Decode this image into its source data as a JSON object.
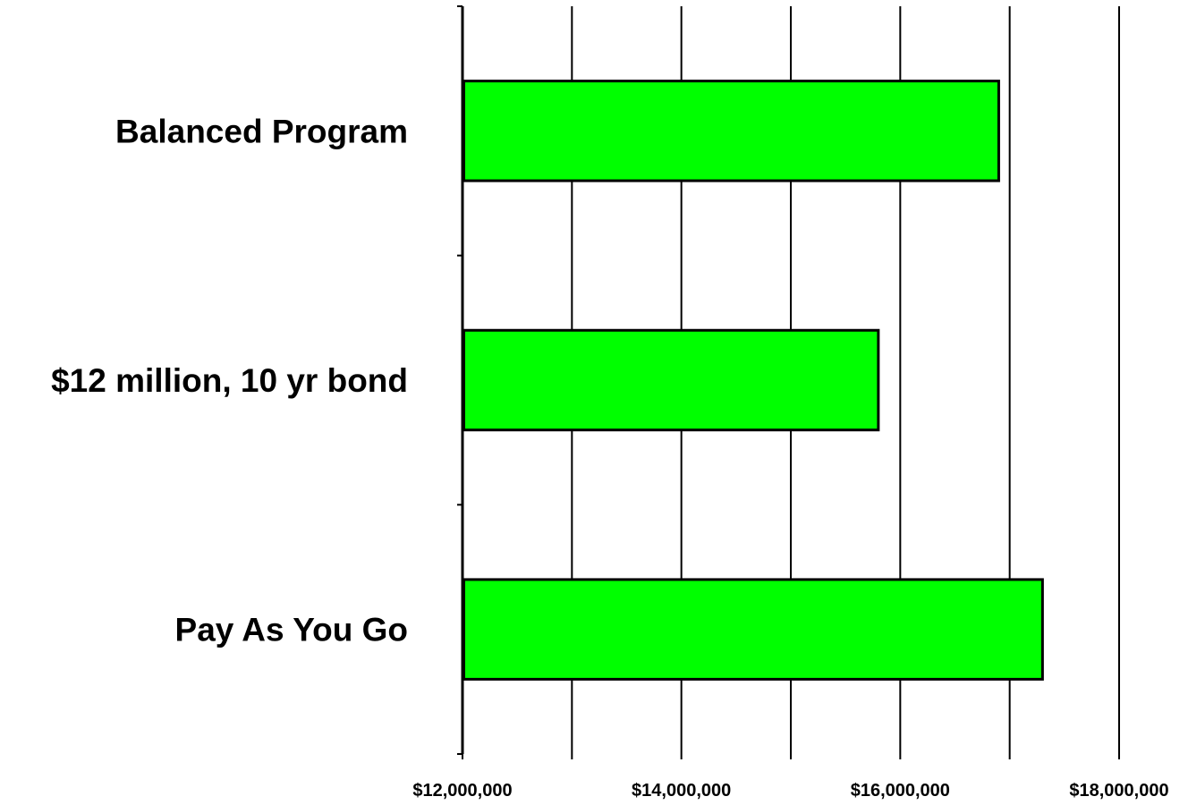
{
  "chart_data": {
    "type": "bar",
    "orientation": "horizontal",
    "title": "",
    "xlabel": "",
    "ylabel": "",
    "categories": [
      "Balanced Program",
      "$12 million, 10 yr bond",
      "Pay As You Go"
    ],
    "values": [
      16900000,
      15800000,
      17300000
    ],
    "xlim": [
      12000000,
      18000000
    ],
    "x_major_step": 2000000,
    "x_minor_step": 1000000,
    "x_tick_labels": [
      "$12,000,000",
      "$14,000,000",
      "$16,000,000",
      "$18,000,000"
    ],
    "grid": "vertical",
    "legend": "none",
    "bar_color": "#00ff00",
    "bar_edge_color": "#000000"
  }
}
